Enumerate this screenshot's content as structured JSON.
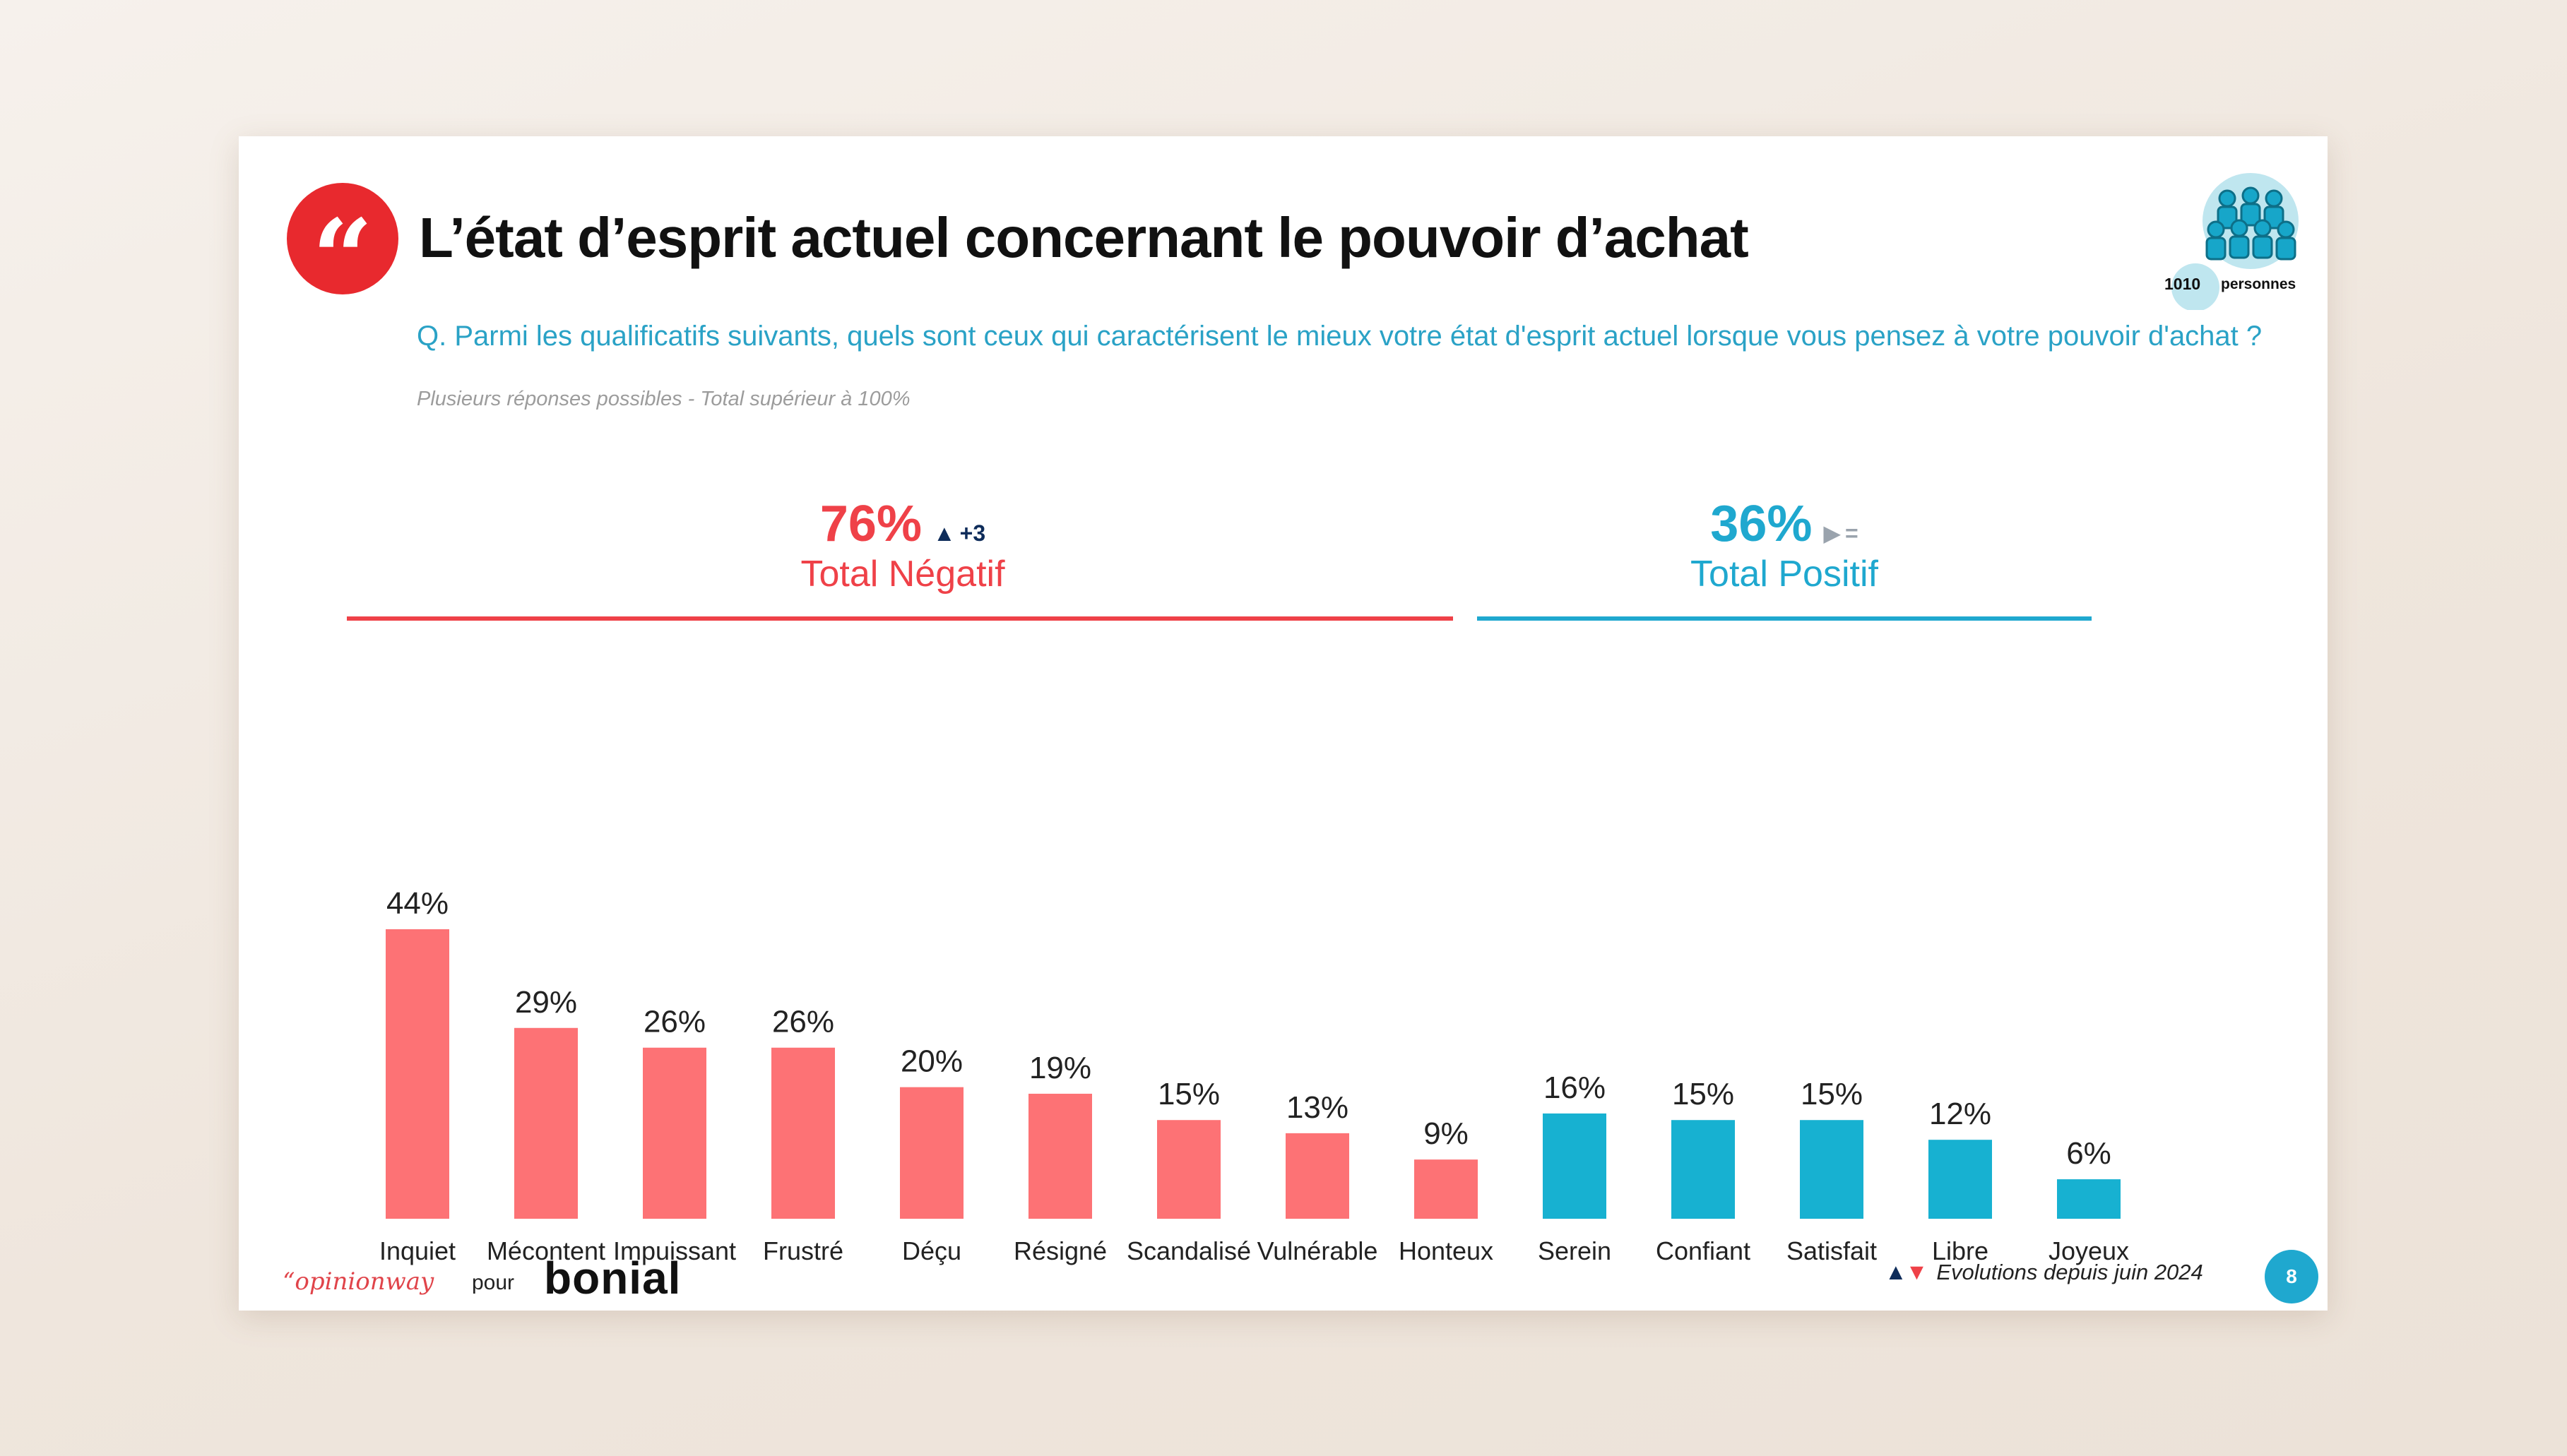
{
  "title": "L’état d’esprit actuel concernant le pouvoir d’achat",
  "quote_icon": "quote-icon",
  "quote_glyph": "“",
  "panel": {
    "count": "1010",
    "unit": "personnes",
    "icon": "people-group-icon"
  },
  "question": "Q. Parmi les qualificatifs suivants, quels sont ceux qui caractérisent le mieux votre état d'esprit actuel lorsque vous pensez à votre pouvoir d'achat ?",
  "note": "Plusieurs réponses possibles - Total supérieur à 100%",
  "totals": {
    "negative": {
      "pct": "76%",
      "label": "Total Négatif",
      "evo_symbol": "▲",
      "evo": "+3",
      "color": "#ef4148"
    },
    "positive": {
      "pct": "36%",
      "label": "Total Positif",
      "evo_symbol": "▶",
      "evo": "=",
      "color": "#1fa8cf"
    }
  },
  "chart_data": {
    "type": "bar",
    "categories": [
      "Inquiet",
      "Mécontent",
      "Impuissant",
      "Frustré",
      "Déçu",
      "Résigné",
      "Scandalisé",
      "Vulnérable",
      "Honteux",
      "Serein",
      "Confiant",
      "Satisfait",
      "Libre",
      "Joyeux"
    ],
    "values": [
      44,
      29,
      26,
      26,
      20,
      19,
      15,
      13,
      9,
      16,
      15,
      15,
      12,
      6
    ],
    "value_labels": [
      "44%",
      "29%",
      "26%",
      "26%",
      "20%",
      "19%",
      "15%",
      "13%",
      "9%",
      "16%",
      "15%",
      "15%",
      "12%",
      "6%"
    ],
    "groups": [
      "negative",
      "negative",
      "negative",
      "negative",
      "negative",
      "negative",
      "negative",
      "negative",
      "negative",
      "positive",
      "positive",
      "positive",
      "positive",
      "positive"
    ],
    "colors": {
      "negative": "#fd7275",
      "positive": "#17b1d1"
    },
    "ylim": [
      0,
      44
    ],
    "grid": false,
    "title": "",
    "xlabel": "",
    "ylabel": ""
  },
  "footer": {
    "brand": "“opinionway",
    "pour": "pour",
    "partner": "bonial",
    "evo_up": "▲",
    "evo_down": "▼",
    "evolutions": "Evolutions depuis juin 2024",
    "page": "8"
  }
}
